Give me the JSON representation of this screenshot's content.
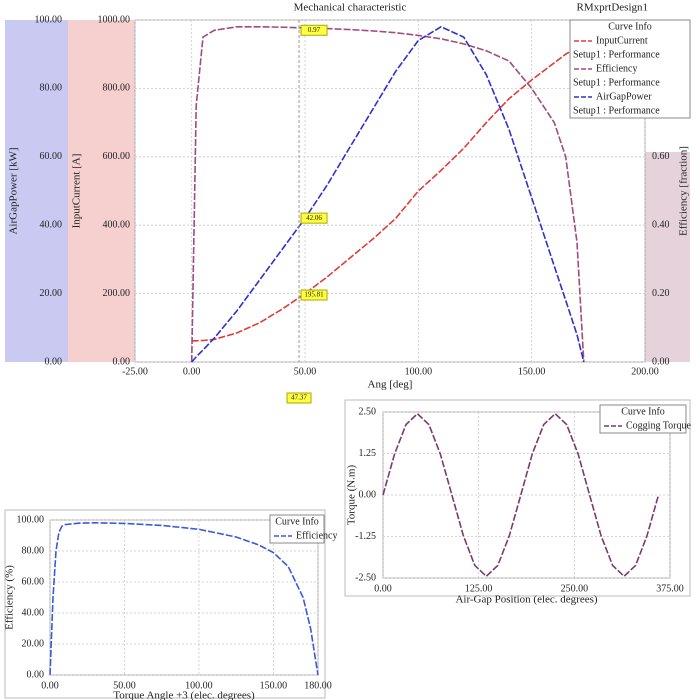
{
  "chart_data": [
    {
      "type": "line",
      "title": "Mechanical characteristic",
      "subtitle": "RMxprtDesign1",
      "x_label": "Ang [deg]",
      "xlim": [
        -25,
        200
      ],
      "xticks": [
        {
          "value": -25,
          "label": "-25.00"
        },
        {
          "value": 0,
          "label": "0.00"
        },
        {
          "value": 50,
          "label": "50.00"
        },
        {
          "value": 100,
          "label": "100.00"
        },
        {
          "value": 150,
          "label": "150.00"
        },
        {
          "value": 200,
          "label": "200.00"
        }
      ],
      "y_label": "AirGapPower [kW]",
      "ylim": [
        0,
        100
      ],
      "yticks": [
        {
          "value": 0,
          "label": "0.00"
        },
        {
          "value": 20,
          "label": "20.00"
        },
        {
          "value": 40,
          "label": "40.00"
        },
        {
          "value": 60,
          "label": "60.00"
        },
        {
          "value": 80,
          "label": "80.00"
        },
        {
          "value": 100,
          "label": "100.00"
        }
      ],
      "y2_label": "InputCurrent [A]",
      "y2lim": [
        0,
        1000
      ],
      "y2ticks": [
        {
          "value": 0,
          "label": "0.00"
        },
        {
          "value": 200,
          "label": "200.00"
        },
        {
          "value": 400,
          "label": "400.00"
        },
        {
          "value": 600,
          "label": "600.00"
        },
        {
          "value": 800,
          "label": "800.00"
        },
        {
          "value": 1000,
          "label": "1000.00"
        }
      ],
      "y3_label": "Efficiency [fraction]",
      "y3lim": [
        0,
        1
      ],
      "y3ticks": [
        {
          "value": 0,
          "label": "0.00"
        },
        {
          "value": 0.2,
          "label": "0.20"
        },
        {
          "value": 0.4,
          "label": "0.40"
        },
        {
          "value": 0.6,
          "label": "0.60"
        }
      ],
      "grid": true,
      "legend_title": "Curve Info",
      "x": [
        0,
        2,
        5,
        10,
        20,
        30,
        40,
        50,
        60,
        70,
        80,
        90,
        100,
        110,
        120,
        130,
        140,
        150,
        160,
        165,
        170,
        173
      ],
      "series": [
        {
          "name": "InputCurrent",
          "source": "Setup1 : Performance",
          "color": "#e03c3c",
          "axis": "y2",
          "values": [
            62,
            62,
            63,
            66,
            85,
            115,
            155,
            200,
            250,
            305,
            360,
            420,
            500,
            560,
            625,
            700,
            770,
            825,
            875,
            900,
            920,
            930
          ]
        },
        {
          "name": "Efficiency",
          "source": "Setup1 : Performance",
          "color": "#a04c7c",
          "axis": "y3",
          "values": [
            0,
            0.75,
            0.95,
            0.97,
            0.98,
            0.98,
            0.979,
            0.977,
            0.975,
            0.972,
            0.968,
            0.963,
            0.955,
            0.945,
            0.93,
            0.91,
            0.88,
            0.8,
            0.7,
            0.6,
            0.35,
            0
          ]
        },
        {
          "name": "AirGapPower",
          "source": "Setup1 : Performance",
          "color": "#3030d0",
          "axis": "y",
          "values": [
            0,
            1.5,
            3.5,
            7,
            15,
            24,
            33,
            42,
            52,
            63,
            74,
            85,
            94,
            98,
            95,
            84,
            68,
            48,
            28,
            18,
            8,
            0
          ]
        }
      ],
      "cursor": {
        "x": 47.37,
        "values": [
          {
            "value": 0.97,
            "axis": "y3"
          },
          {
            "value": 42.06,
            "axis": "y"
          },
          {
            "value": 195.81,
            "axis": "y2"
          }
        ]
      }
    },
    {
      "type": "line",
      "x_label": "Torque Angle +3 (elec. degrees)",
      "xlim": [
        0,
        180
      ],
      "xticks": [
        {
          "value": 0,
          "label": "0.00"
        },
        {
          "value": 50,
          "label": "50.00"
        },
        {
          "value": 100,
          "label": "100.00"
        },
        {
          "value": 150,
          "label": "150.00"
        },
        {
          "value": 180,
          "label": "180.00"
        }
      ],
      "y_label": "Efficiency (%)",
      "ylim": [
        0,
        100
      ],
      "yticks": [
        {
          "value": 0,
          "label": "0.00"
        },
        {
          "value": 20,
          "label": "20.00"
        },
        {
          "value": 40,
          "label": "40.00"
        },
        {
          "value": 60,
          "label": "60.00"
        },
        {
          "value": 80,
          "label": "80.00"
        },
        {
          "value": 100,
          "label": "100.00"
        }
      ],
      "grid": true,
      "legend_title": "Curve Info",
      "x": [
        0,
        2,
        4,
        6,
        8,
        10,
        20,
        30,
        50,
        75,
        100,
        125,
        140,
        150,
        160,
        170,
        175,
        178,
        180
      ],
      "series": [
        {
          "name": "Efficiency",
          "color": "#3a5ad8",
          "axis": "y",
          "values": [
            0,
            50,
            80,
            92,
            96,
            97,
            98,
            98.2,
            97.8,
            96.5,
            94,
            89,
            84,
            79,
            70,
            50,
            30,
            12,
            0
          ]
        }
      ]
    },
    {
      "type": "line",
      "x_label": "Air-Gap Position (elec. degrees)",
      "xlim": [
        0,
        375
      ],
      "xticks": [
        {
          "value": 0,
          "label": "0.00"
        },
        {
          "value": 125,
          "label": "125.00"
        },
        {
          "value": 250,
          "label": "250.00"
        },
        {
          "value": 375,
          "label": "375.00"
        }
      ],
      "y_label": "Torque (N.m)",
      "ylim": [
        -2.5,
        2.5
      ],
      "yticks": [
        {
          "value": -2.5,
          "label": "-2.50"
        },
        {
          "value": -1.25,
          "label": "-1.25"
        },
        {
          "value": 0,
          "label": "0.00"
        },
        {
          "value": 1.25,
          "label": "1.25"
        },
        {
          "value": 2.5,
          "label": "2.50"
        }
      ],
      "grid": true,
      "legend_title": "Curve Info",
      "x": [
        0,
        15,
        30,
        45,
        60,
        75,
        90,
        105,
        120,
        135,
        150,
        165,
        180,
        195,
        210,
        225,
        240,
        255,
        270,
        285,
        300,
        315,
        330,
        345,
        360
      ],
      "series": [
        {
          "name": "Cogging Torque",
          "color": "#7a3a70",
          "axis": "y",
          "values": [
            0,
            1.23,
            2.12,
            2.45,
            2.12,
            1.23,
            0,
            -1.23,
            -2.12,
            -2.45,
            -2.12,
            -1.23,
            0,
            1.23,
            2.12,
            2.45,
            2.12,
            1.23,
            0,
            -1.23,
            -2.12,
            -2.45,
            -2.12,
            -1.23,
            0
          ]
        }
      ]
    }
  ]
}
